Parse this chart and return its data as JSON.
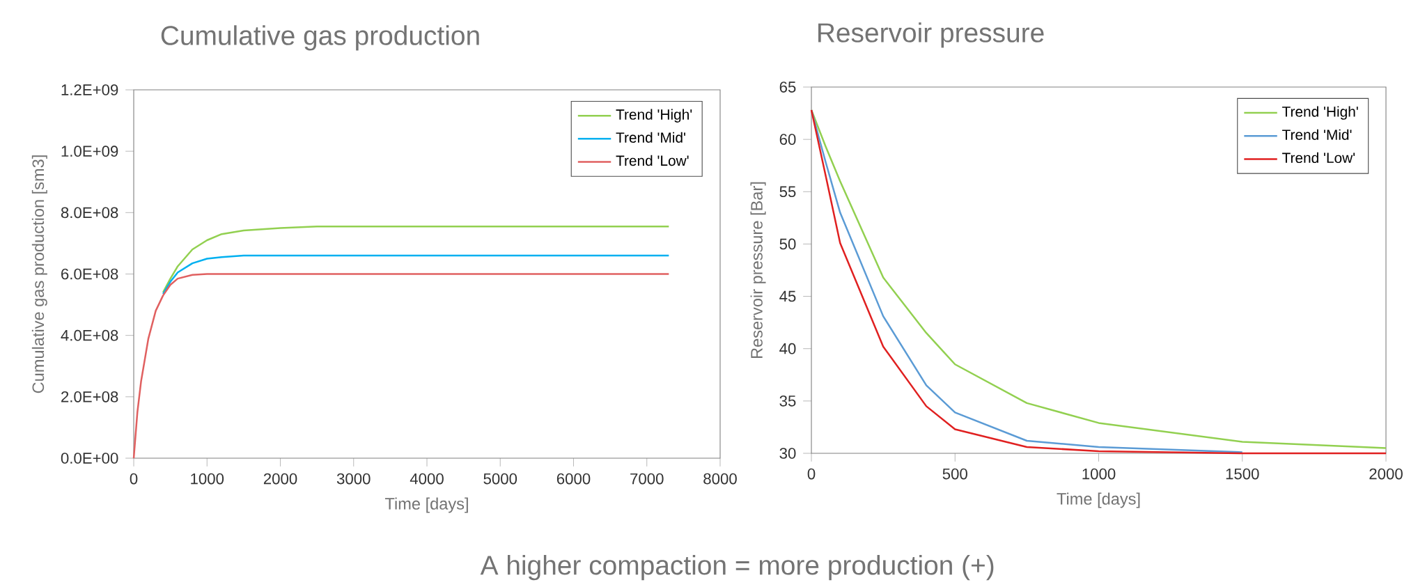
{
  "chart_data": [
    {
      "type": "line",
      "title": "Cumulative gas production",
      "xlabel": "Time [days]",
      "ylabel": "Cumulative gas production [sm3]",
      "legend": "top right",
      "xlim": [
        0,
        8000
      ],
      "xticks": [
        0,
        1000,
        2000,
        3000,
        4000,
        5000,
        6000,
        7000,
        8000
      ],
      "ylim": [
        0,
        1200000000
      ],
      "yticks": [
        {
          "value": 0,
          "label": "0.0E+00"
        },
        {
          "value": 200000000,
          "label": "2.0E+08"
        },
        {
          "value": 400000000,
          "label": "4.0E+08"
        },
        {
          "value": 600000000,
          "label": "6.0E+08"
        },
        {
          "value": 800000000,
          "label": "8.0E+08"
        },
        {
          "value": 1000000000,
          "label": "1.0E+09"
        },
        {
          "value": 1200000000,
          "label": "1.2E+09"
        }
      ],
      "x": [
        0,
        50,
        100,
        200,
        300,
        400,
        500,
        600,
        800,
        1000,
        1200,
        1500,
        2000,
        2500,
        3000,
        4000,
        5000,
        6000,
        7300
      ],
      "series": [
        {
          "name": "Trend 'High'",
          "color": "#92d050",
          "values": [
            null,
            null,
            null,
            null,
            null,
            540000000,
            585000000,
            625000000,
            680000000,
            710000000,
            730000000,
            742000000,
            750000000,
            755000000,
            755000000,
            755000000,
            755000000,
            755000000,
            755000000
          ]
        },
        {
          "name": "Trend 'Mid'",
          "color": "#00b0f0",
          "values": [
            null,
            null,
            null,
            null,
            null,
            535000000,
            575000000,
            605000000,
            635000000,
            650000000,
            655000000,
            660000000,
            660000000,
            660000000,
            660000000,
            660000000,
            660000000,
            660000000,
            660000000
          ]
        },
        {
          "name": "Trend 'Low'",
          "color": "#e06060",
          "values": [
            0,
            150000000,
            250000000,
            390000000,
            480000000,
            530000000,
            565000000,
            585000000,
            597000000,
            600000000,
            600000000,
            600000000,
            600000000,
            600000000,
            600000000,
            600000000,
            600000000,
            600000000,
            600000000
          ]
        }
      ],
      "annotations": [
        "A higher compaction = more production (+)"
      ]
    },
    {
      "type": "line",
      "title": "Reservoir pressure",
      "xlabel": "Time [days]",
      "ylabel": "Reservoir pressure [Bar]",
      "legend": "top right",
      "xlim": [
        0,
        2000
      ],
      "xticks": [
        0,
        500,
        1000,
        1500,
        2000
      ],
      "ylim": [
        30,
        65
      ],
      "yticks": [
        30,
        35,
        40,
        45,
        50,
        55,
        60,
        65
      ],
      "x": [
        0,
        50,
        100,
        250,
        400,
        500,
        750,
        1000,
        1500,
        2000
      ],
      "series": [
        {
          "name": "Trend 'High'",
          "color": "#92d050",
          "values": [
            62.8,
            59.3,
            56,
            46.8,
            41.5,
            38.5,
            34.8,
            32.9,
            31.1,
            30.5
          ]
        },
        {
          "name": "Trend 'Mid'",
          "color": "#5b9bd5",
          "values": [
            62.8,
            57.8,
            53,
            43.1,
            36.5,
            33.9,
            31.2,
            30.6,
            30.1,
            null
          ]
        },
        {
          "name": "Trend 'Low'",
          "color": "#e02020",
          "values": [
            62.8,
            56.5,
            50.1,
            40.2,
            34.5,
            32.3,
            30.6,
            30.2,
            30,
            30
          ]
        }
      ]
    }
  ]
}
